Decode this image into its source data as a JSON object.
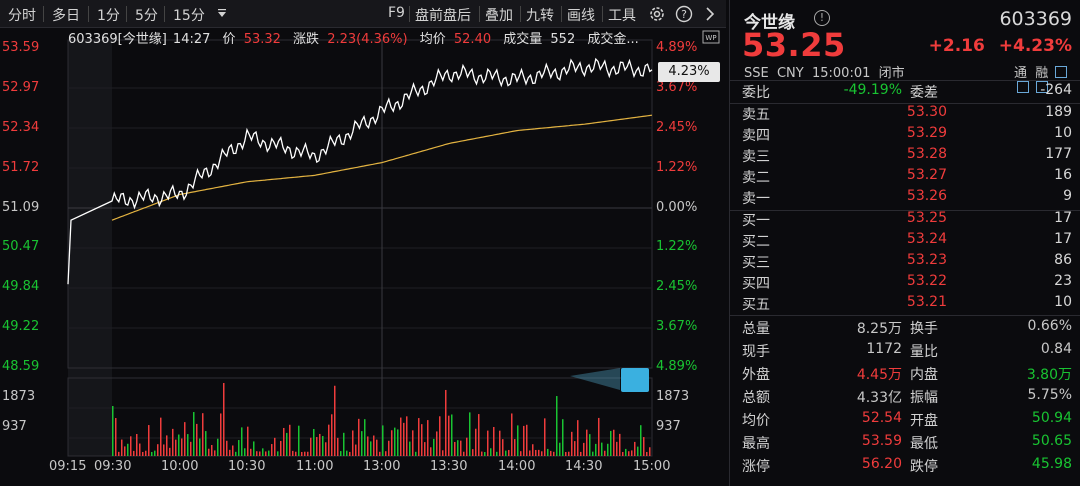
{
  "toolbar": {
    "items": [
      "分时",
      "多日",
      "1分",
      "5分",
      "15分"
    ],
    "right_items": [
      "F9",
      "盘前盘后",
      "叠加",
      "九转",
      "画线",
      "工具"
    ]
  },
  "chart": {
    "info": {
      "code_name": "603369[今世缘]",
      "time": "14:27",
      "price_label": "价",
      "price": "53.32",
      "change_label": "涨跌",
      "change": "2.23(4.36%)",
      "avg_label": "均价",
      "avg": "52.40",
      "vol_label": "成交量",
      "vol": "552",
      "amount_label": "成交金..."
    },
    "badge": "4.23%",
    "price_ticks": [
      "53.59",
      "52.97",
      "52.34",
      "51.72",
      "51.09",
      "50.47",
      "49.84",
      "49.22",
      "48.59"
    ],
    "pct_ticks": [
      "4.89%",
      "3.67%",
      "2.45%",
      "1.22%",
      "0.00%",
      "1.22%",
      "2.45%",
      "3.67%",
      "4.89%"
    ],
    "vol_ticks": [
      "1873",
      "937"
    ],
    "time_ticks": [
      "09:15",
      "09:30",
      "10:00",
      "10:30",
      "11:00",
      "13:00",
      "13:30",
      "14:00",
      "14:30",
      "15:00"
    ],
    "colors": {
      "up": "#f03c3c",
      "down": "#19c432",
      "price_line": "#ffffff",
      "avg_line": "#e3b341"
    }
  },
  "chart_data": {
    "type": "line",
    "x": [
      "09:30",
      "10:00",
      "10:30",
      "11:00",
      "11:30/13:00",
      "13:30",
      "14:00",
      "14:30",
      "15:00"
    ],
    "series": [
      {
        "name": "价",
        "values": [
          51.2,
          51.3,
          52.2,
          51.9,
          52.6,
          53.2,
          53.1,
          53.3,
          53.25
        ]
      },
      {
        "name": "均价",
        "values": [
          50.9,
          51.3,
          51.5,
          51.6,
          51.8,
          52.1,
          52.3,
          52.4,
          52.54
        ]
      }
    ],
    "ylim": [
      48.59,
      53.59
    ],
    "grid": true
  },
  "panel": {
    "name": "今世缘",
    "code": "603369",
    "price": "53.25",
    "change": "+2.16",
    "change_pct": "+4.23%",
    "meta": "SSE  CNY  15:00:01  闭市",
    "tags": "通  融",
    "weibi_label": "委比",
    "weibi": "-49.19%",
    "weicha_label": "委差",
    "weicha": "-264",
    "asks": [
      {
        "label": "卖五",
        "price": "53.30",
        "vol": "189"
      },
      {
        "label": "卖四",
        "price": "53.29",
        "vol": "10"
      },
      {
        "label": "卖三",
        "price": "53.28",
        "vol": "177"
      },
      {
        "label": "卖二",
        "price": "53.27",
        "vol": "16"
      },
      {
        "label": "卖一",
        "price": "53.26",
        "vol": "9"
      }
    ],
    "bids": [
      {
        "label": "买一",
        "price": "53.25",
        "vol": "17"
      },
      {
        "label": "买二",
        "price": "53.24",
        "vol": "17"
      },
      {
        "label": "买三",
        "price": "53.23",
        "vol": "86"
      },
      {
        "label": "买四",
        "price": "53.22",
        "vol": "23"
      },
      {
        "label": "买五",
        "price": "53.21",
        "vol": "10"
      }
    ],
    "stats": [
      {
        "l1": "总量",
        "v1": "8.25万",
        "c1": "gray",
        "l2": "换手",
        "v2": "0.66%",
        "c2": "gray"
      },
      {
        "l1": "现手",
        "v1": "1172",
        "c1": "gray",
        "l2": "量比",
        "v2": "0.84",
        "c2": "gray"
      },
      {
        "l1": "外盘",
        "v1": "4.45万",
        "c1": "red",
        "l2": "内盘",
        "v2": "3.80万",
        "c2": "green"
      },
      {
        "l1": "总额",
        "v1": "4.33亿",
        "c1": "gray",
        "l2": "振幅",
        "v2": "5.75%",
        "c2": "gray"
      },
      {
        "l1": "均价",
        "v1": "52.54",
        "c1": "red",
        "l2": "开盘",
        "v2": "50.94",
        "c2": "green"
      },
      {
        "l1": "最高",
        "v1": "53.59",
        "c1": "red",
        "l2": "最低",
        "v2": "50.65",
        "c2": "green"
      },
      {
        "l1": "涨停",
        "v1": "56.20",
        "c1": "red",
        "l2": "跌停",
        "v2": "45.98",
        "c2": "green"
      }
    ]
  }
}
